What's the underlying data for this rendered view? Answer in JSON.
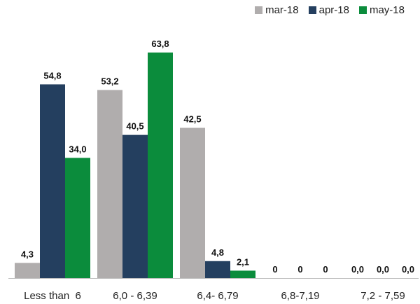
{
  "chart_data": {
    "type": "bar",
    "categories": [
      "Less than  6",
      "6,0 - 6,39",
      "6,4- 6,79",
      "6,8-7,19",
      "7,2 - 7,59"
    ],
    "series": [
      {
        "name": "mar-18",
        "color": "#b0adad",
        "values": [
          4.3,
          53.2,
          42.5,
          0,
          0
        ],
        "labels": [
          "4,3",
          "53,2",
          "42,5",
          "0",
          "0,0"
        ]
      },
      {
        "name": "apr-18",
        "color": "#243f5f",
        "values": [
          54.8,
          40.5,
          4.8,
          0,
          0
        ],
        "labels": [
          "54,8",
          "40,5",
          "4,8",
          "0",
          "0,0"
        ]
      },
      {
        "name": "may-18",
        "color": "#0b8c3c",
        "values": [
          34.0,
          63.8,
          2.1,
          0,
          0
        ],
        "labels": [
          "34,0",
          "63,8",
          "2,1",
          "0",
          "0,0"
        ]
      }
    ],
    "ylim": [
      0,
      70
    ],
    "grid": false,
    "legend_position": "top-right"
  }
}
